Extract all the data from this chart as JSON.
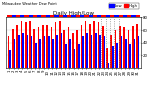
{
  "title": "Milwaukee Weather Dew Point",
  "subtitle": "Daily High/Low",
  "ylim": [
    0,
    80
  ],
  "yticks": [
    20,
    40,
    60,
    80
  ],
  "background_color": "#ffffff",
  "plot_bg_color": "#ffffff",
  "bar_width": 0.38,
  "high_color": "#ff0000",
  "low_color": "#0000ff",
  "days": [
    1,
    2,
    3,
    4,
    5,
    6,
    7,
    8,
    9,
    10,
    11,
    12,
    13,
    14,
    15,
    16,
    17,
    18,
    19,
    20,
    21,
    22,
    23,
    24,
    25,
    26,
    27,
    28,
    29,
    30,
    31
  ],
  "highs": [
    50,
    62,
    68,
    75,
    72,
    75,
    62,
    64,
    68,
    68,
    65,
    72,
    74,
    60,
    65,
    56,
    60,
    68,
    74,
    70,
    74,
    72,
    66,
    32,
    52,
    60,
    66,
    64,
    60,
    66,
    70
  ],
  "lows": [
    28,
    46,
    52,
    56,
    52,
    50,
    40,
    46,
    50,
    50,
    46,
    52,
    56,
    38,
    46,
    30,
    38,
    50,
    56,
    52,
    56,
    52,
    50,
    8,
    34,
    40,
    50,
    46,
    38,
    46,
    50
  ],
  "dashed_cols": [
    22,
    23,
    24,
    25
  ],
  "legend_labels": [
    "Low",
    "High"
  ],
  "legend_colors": [
    "#0000ff",
    "#ff0000"
  ],
  "title_fontsize": 4.0,
  "tick_fontsize": 2.8,
  "legend_fontsize": 2.8,
  "yaxis_right": true
}
